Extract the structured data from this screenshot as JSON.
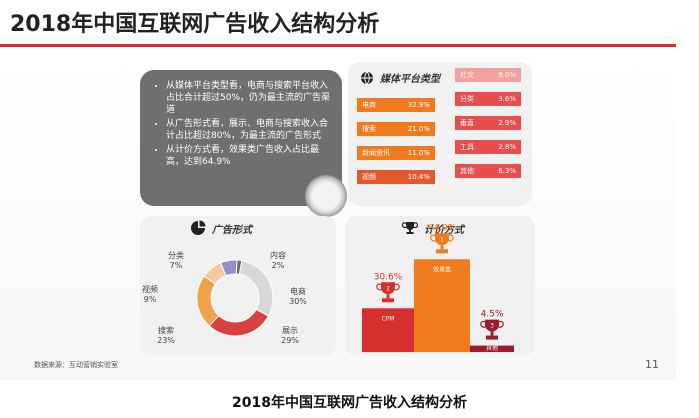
{
  "header": {
    "title": "2018年中国互联网广告收入结构分析"
  },
  "bubble": {
    "points": [
      "从媒体平台类型看，电商与搜索平台收入占比合计超过50%，仍为最主流的广告渠道",
      "从广告形式看，展示、电商与搜索收入合计占比超过80%，为最主流的广告形式",
      "从计价方式看，效果类广告收入占比最高，达到64.9%"
    ]
  },
  "colors": {
    "red": "#d62f2f",
    "orange": "#f07b1e",
    "pink": "#f2a0a0",
    "dark_red": "#9e1b2c"
  },
  "chart_data": [
    {
      "type": "bar",
      "title": "媒体平台类型",
      "items": [
        {
          "label": "电商",
          "value": 32.9,
          "display": "32.9%",
          "color": "#f07b1e"
        },
        {
          "label": "搜索",
          "value": 21.0,
          "display": "21.0%",
          "color": "#f07b1e"
        },
        {
          "label": "新闻资讯",
          "value": 11.0,
          "display": "11.0%",
          "color": "#f07b1e"
        },
        {
          "label": "视频",
          "value": 10.4,
          "display": "10.4%",
          "color": "#e25a2a"
        },
        {
          "label": "社交",
          "value": 9.0,
          "display": "9.0%",
          "color": "#f2a0a0"
        },
        {
          "label": "分类",
          "value": 3.6,
          "display": "3.6%",
          "color": "#e94e4e"
        },
        {
          "label": "垂直",
          "value": 2.9,
          "display": "2.9%",
          "color": "#e94e4e"
        },
        {
          "label": "工具",
          "value": 2.8,
          "display": "2.8%",
          "color": "#e94e4e"
        },
        {
          "label": "其他",
          "value": 6.3,
          "display": "6.3%",
          "color": "#e94e4e"
        }
      ]
    },
    {
      "type": "pie",
      "title": "广告形式",
      "slices": [
        {
          "label": "电商",
          "value": 30,
          "display": "30%",
          "color": "#d8d8d8"
        },
        {
          "label": "展示",
          "value": 29,
          "display": "29%",
          "color": "#d94141"
        },
        {
          "label": "搜索",
          "value": 23,
          "display": "23%",
          "color": "#f0a14a"
        },
        {
          "label": "视频",
          "value": 9,
          "display": "9%",
          "color": "#f7c9a0"
        },
        {
          "label": "分类",
          "value": 7,
          "display": "7%",
          "color": "#9a8ccc"
        },
        {
          "label": "内容",
          "value": 2,
          "display": "2%",
          "color": "#6a6a6a"
        }
      ]
    },
    {
      "type": "bar",
      "title": "计价方式",
      "categories": [
        "CPM",
        "效果类",
        "其他"
      ],
      "values": [
        30.6,
        64.9,
        4.5
      ],
      "labels": [
        "30.6%",
        "64.9%",
        "4.5%"
      ],
      "colors": [
        "#d62f2f",
        "#f07b1e",
        "#9e1b2c"
      ],
      "ranks": [
        "2",
        "1",
        "3"
      ]
    }
  ],
  "footer": {
    "source": "数据来源：互动营销实验室",
    "page": "11"
  },
  "caption": "2018年中国互联网广告收入结构分析"
}
